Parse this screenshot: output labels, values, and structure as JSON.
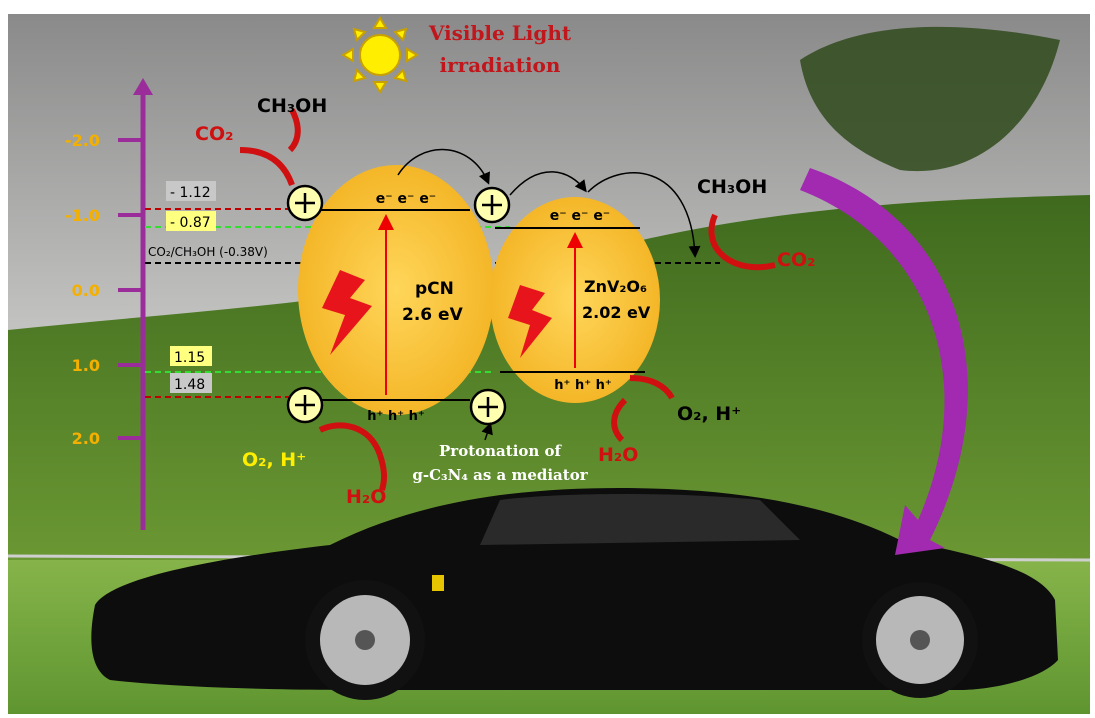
{
  "light": {
    "line1": "Visible Light",
    "line2": "irradiation"
  },
  "axis": {
    "ticks": [
      "-2.0",
      "-1.0",
      "0.0",
      "1.0",
      "2.0"
    ]
  },
  "levels": {
    "pcn_cb": "- 1.12",
    "zn_cb": "- 0.87",
    "redox": "CO₂/CH₃OH (-0.38V)",
    "zn_vb": "1.15",
    "pcn_vb": "1.48"
  },
  "left_reduction": {
    "reactant": "CO₂",
    "product": "CH₃OH"
  },
  "right_reduction": {
    "product": "CH₃OH",
    "reactant": "CO₂"
  },
  "pcn": {
    "electrons": "e⁻ e⁻ e⁻",
    "name": "pCN",
    "gap": "2.6 eV",
    "holes": "h⁺ h⁺ h⁺"
  },
  "znv2o6": {
    "electrons": "e⁻ e⁻ e⁻",
    "name": "ZnV₂O₆",
    "gap": "2.02 eV",
    "holes": "h⁺ h⁺ h⁺"
  },
  "right_oxidation": {
    "product": "O₂, H⁺",
    "reactant": "H₂O"
  },
  "left_oxidation": {
    "product": "O₂, H⁺",
    "reactant": "H₂O"
  },
  "mediator": {
    "line1": "Protonation of",
    "line2": "g-C₃N₄ as a mediator"
  }
}
